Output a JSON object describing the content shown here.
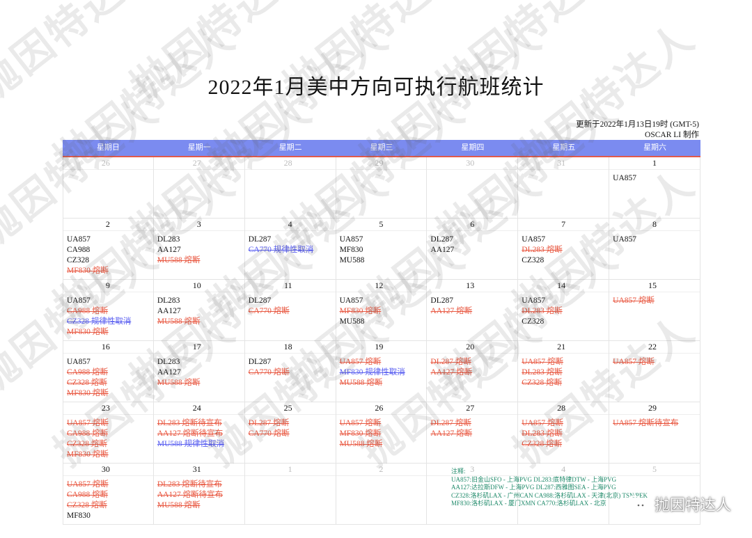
{
  "title": "2022年1月美中方向可执行航班统计",
  "updated": "更新于2022年1月13日19时 (GMT-5)",
  "author": "OSCAR LI 制作",
  "weekdays": [
    "星期日",
    "星期一",
    "星期二",
    "星期三",
    "星期四",
    "星期五",
    "星期六"
  ],
  "colors": {
    "header": "#7b8bf0",
    "cancelled_fuse": "#e8563f",
    "regular_cancel": "#5a5ff0",
    "notes": "#1f8a6a"
  },
  "weeks": [
    [
      {
        "date": "26",
        "muted": true,
        "flights": []
      },
      {
        "date": "27",
        "muted": true,
        "flights": []
      },
      {
        "date": "28",
        "muted": true,
        "flights": []
      },
      {
        "date": "29",
        "muted": true,
        "flights": []
      },
      {
        "date": "30",
        "muted": true,
        "flights": []
      },
      {
        "date": "31",
        "muted": true,
        "flights": []
      },
      {
        "date": "1",
        "flights": [
          {
            "t": "UA857",
            "c": "black"
          }
        ]
      }
    ],
    [
      {
        "date": "2",
        "flights": [
          {
            "t": "UA857",
            "c": "black"
          },
          {
            "t": "CA988",
            "c": "black"
          },
          {
            "t": "CZ328",
            "c": "black"
          },
          {
            "t": "MF830 熔断",
            "c": "red"
          }
        ]
      },
      {
        "date": "3",
        "flights": [
          {
            "t": "DL283",
            "c": "black"
          },
          {
            "t": "AA127",
            "c": "black"
          },
          {
            "t": "MU588 熔断",
            "c": "red"
          }
        ]
      },
      {
        "date": "4",
        "flights": [
          {
            "t": "DL287",
            "c": "black"
          },
          {
            "t": "CA770 规律性取消",
            "c": "blue"
          }
        ]
      },
      {
        "date": "5",
        "flights": [
          {
            "t": "UA857",
            "c": "black"
          },
          {
            "t": "MF830",
            "c": "black"
          },
          {
            "t": "MU588",
            "c": "black"
          }
        ]
      },
      {
        "date": "6",
        "flights": [
          {
            "t": "DL287",
            "c": "black"
          },
          {
            "t": "AA127",
            "c": "black"
          }
        ]
      },
      {
        "date": "7",
        "flights": [
          {
            "t": "UA857",
            "c": "black"
          },
          {
            "t": "DL283 熔断",
            "c": "red"
          },
          {
            "t": "CZ328",
            "c": "black"
          }
        ]
      },
      {
        "date": "8",
        "flights": [
          {
            "t": "UA857",
            "c": "black"
          }
        ]
      }
    ],
    [
      {
        "date": "9",
        "flights": [
          {
            "t": "UA857",
            "c": "black"
          },
          {
            "t": "CA988 熔断",
            "c": "red"
          },
          {
            "t": "CZ328 规律性取消",
            "c": "blue"
          },
          {
            "t": "MF830 熔断",
            "c": "red"
          }
        ]
      },
      {
        "date": "10",
        "flights": [
          {
            "t": "DL283",
            "c": "black"
          },
          {
            "t": "AA127",
            "c": "black"
          },
          {
            "t": "MU588 熔断",
            "c": "red"
          }
        ]
      },
      {
        "date": "11",
        "flights": [
          {
            "t": "DL287",
            "c": "black"
          },
          {
            "t": "CA770 熔断",
            "c": "red"
          }
        ]
      },
      {
        "date": "12",
        "flights": [
          {
            "t": "UA857",
            "c": "black"
          },
          {
            "t": "MF830 熔断",
            "c": "red"
          },
          {
            "t": "MU588",
            "c": "black"
          }
        ]
      },
      {
        "date": "13",
        "flights": [
          {
            "t": "DL287",
            "c": "black"
          },
          {
            "t": "AA127 熔断",
            "c": "red"
          }
        ]
      },
      {
        "date": "14",
        "flights": [
          {
            "t": "UA857",
            "c": "black"
          },
          {
            "t": "DL283 熔断",
            "c": "red"
          },
          {
            "t": "CZ328",
            "c": "black"
          }
        ]
      },
      {
        "date": "15",
        "flights": [
          {
            "t": "UA857 熔断",
            "c": "red"
          }
        ]
      }
    ],
    [
      {
        "date": "16",
        "flights": [
          {
            "t": "UA857",
            "c": "black"
          },
          {
            "t": "CA988 熔断",
            "c": "red"
          },
          {
            "t": "CZ328 熔断",
            "c": "red"
          },
          {
            "t": "MF830 熔断",
            "c": "red"
          }
        ]
      },
      {
        "date": "17",
        "flights": [
          {
            "t": "DL283",
            "c": "black"
          },
          {
            "t": "AA127",
            "c": "black"
          },
          {
            "t": "MU588 熔断",
            "c": "red"
          }
        ]
      },
      {
        "date": "18",
        "flights": [
          {
            "t": "DL287",
            "c": "black"
          },
          {
            "t": "CA770 熔断",
            "c": "red"
          }
        ]
      },
      {
        "date": "19",
        "flights": [
          {
            "t": "UA857 熔断",
            "c": "red"
          },
          {
            "t": "MF830 规律性取消",
            "c": "blue"
          },
          {
            "t": "MU588 熔断",
            "c": "red"
          }
        ]
      },
      {
        "date": "20",
        "flights": [
          {
            "t": "DL287 熔断",
            "c": "red"
          },
          {
            "t": "AA127 熔断",
            "c": "red"
          }
        ]
      },
      {
        "date": "21",
        "flights": [
          {
            "t": "UA857 熔断",
            "c": "red"
          },
          {
            "t": "DL283 熔断",
            "c": "red"
          },
          {
            "t": "CZ328 熔断",
            "c": "red"
          }
        ]
      },
      {
        "date": "22",
        "flights": [
          {
            "t": "UA857 熔断",
            "c": "red"
          }
        ]
      }
    ],
    [
      {
        "date": "23",
        "flights": [
          {
            "t": "UA857 熔断",
            "c": "red"
          },
          {
            "t": "CA988 熔断",
            "c": "red"
          },
          {
            "t": "CZ328 熔断",
            "c": "red"
          },
          {
            "t": "MF830 熔断",
            "c": "red"
          }
        ]
      },
      {
        "date": "24",
        "flights": [
          {
            "t": "DL283 熔断待宣布",
            "c": "red"
          },
          {
            "t": "AA127 熔断待宣布",
            "c": "red"
          },
          {
            "t": "MU588 规律性取消",
            "c": "blue"
          }
        ]
      },
      {
        "date": "25",
        "flights": [
          {
            "t": "DL287 熔断",
            "c": "red"
          },
          {
            "t": "CA770 熔断",
            "c": "red"
          }
        ]
      },
      {
        "date": "26",
        "flights": [
          {
            "t": "UA857 熔断",
            "c": "red"
          },
          {
            "t": "MF830 熔断",
            "c": "red"
          },
          {
            "t": "MU588 熔断",
            "c": "red"
          }
        ]
      },
      {
        "date": "27",
        "flights": [
          {
            "t": "DL287 熔断",
            "c": "red"
          },
          {
            "t": "AA127 熔断",
            "c": "red"
          }
        ]
      },
      {
        "date": "28",
        "flights": [
          {
            "t": "UA857 熔断",
            "c": "red"
          },
          {
            "t": "DL283 熔断",
            "c": "red"
          },
          {
            "t": "CZ328 熔断",
            "c": "red"
          }
        ]
      },
      {
        "date": "29",
        "flights": [
          {
            "t": "UA857 熔断待宣布",
            "c": "red"
          }
        ]
      }
    ],
    [
      {
        "date": "30",
        "flights": [
          {
            "t": "UA857 熔断",
            "c": "red"
          },
          {
            "t": "CA988 熔断",
            "c": "red"
          },
          {
            "t": "CZ328 熔断",
            "c": "red"
          },
          {
            "t": "MF830",
            "c": "black"
          }
        ]
      },
      {
        "date": "31",
        "flights": [
          {
            "t": "DL283 熔断待宣布",
            "c": "red"
          },
          {
            "t": "AA127 熔断待宣布",
            "c": "red"
          },
          {
            "t": "MU588 熔断",
            "c": "red"
          }
        ]
      },
      {
        "date": "1",
        "muted": true,
        "flights": []
      },
      {
        "date": "2",
        "muted": true,
        "flights": []
      },
      {
        "date": "3",
        "muted": true,
        "flights": []
      },
      {
        "date": "4",
        "muted": true,
        "flights": []
      },
      {
        "date": "5",
        "muted": true,
        "flights": []
      }
    ]
  ],
  "notes": {
    "label": "注释:",
    "lines": [
      "UA857:旧金山SFO - 上海PVG    DL283:底特律DTW - 上海PVG",
      "AA127:达拉斯DFW - 上海PVG    DL287:西雅图SEA - 上海PVG",
      "CZ328:洛杉矶LAX - 广州CAN    CA988:洛杉矶LAX - 天津(北京) TSN/PEK",
      "MF830:洛杉矶LAX - 厦门XMN    CA770:洛杉矶LAX - 北京"
    ]
  },
  "watermark": "抛因特达人",
  "logo": {
    "text": "抛因特达人",
    "icon": "wechat-icon"
  }
}
